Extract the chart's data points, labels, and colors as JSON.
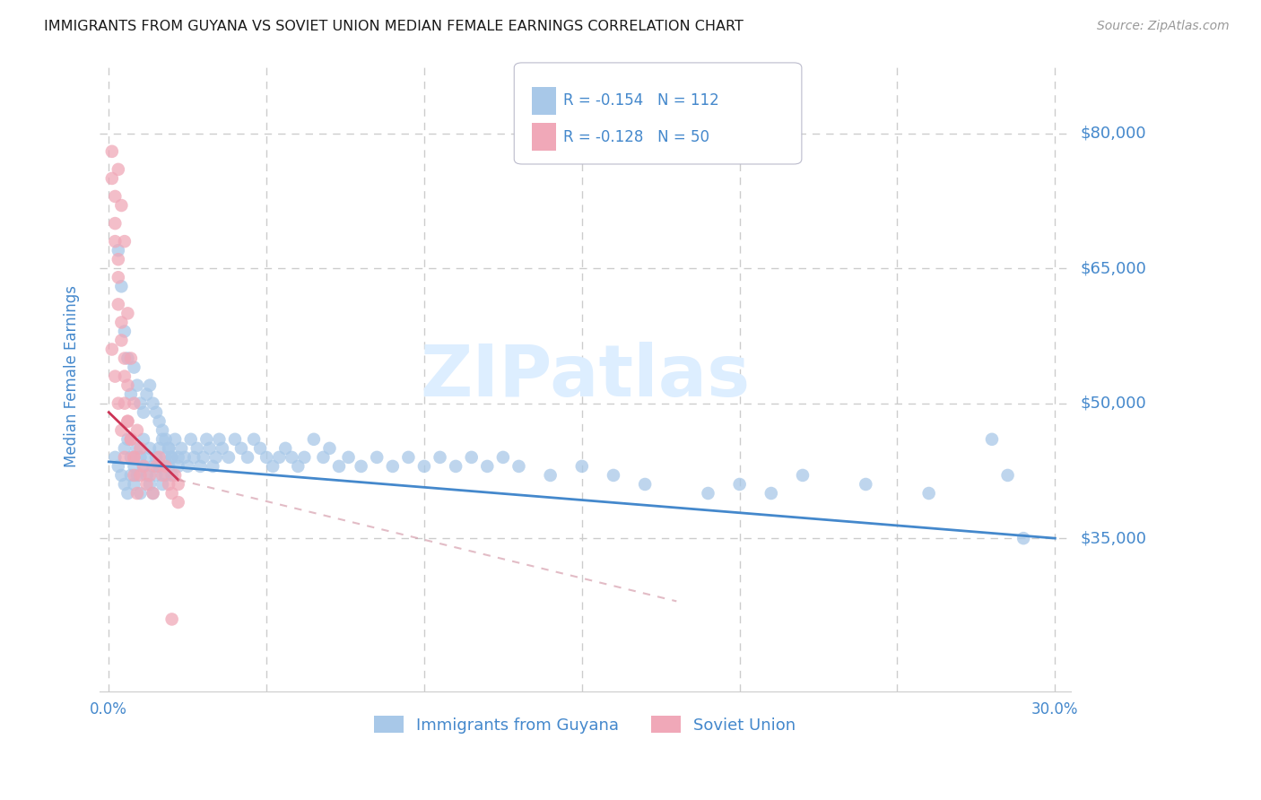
{
  "title": "IMMIGRANTS FROM GUYANA VS SOVIET UNION MEDIAN FEMALE EARNINGS CORRELATION CHART",
  "source": "Source: ZipAtlas.com",
  "ylabel": "Median Female Earnings",
  "watermark": "ZIPatlas",
  "legend_label1": "Immigrants from Guyana",
  "legend_label2": "Soviet Union",
  "R1": -0.154,
  "N1": 112,
  "R2": -0.128,
  "N2": 50,
  "xlim": [
    -0.003,
    0.305
  ],
  "ylim": [
    18000,
    88000
  ],
  "yticks": [
    35000,
    50000,
    65000,
    80000
  ],
  "ytick_labels": [
    "$35,000",
    "$50,000",
    "$65,000",
    "$80,000"
  ],
  "xticks": [
    0.0,
    0.05,
    0.1,
    0.15,
    0.2,
    0.25,
    0.3
  ],
  "xtick_labels": [
    "0.0%",
    "",
    "",
    "",
    "",
    "",
    "30.0%"
  ],
  "color_guyana": "#a8c8e8",
  "color_soviet": "#f0a8b8",
  "color_line_guyana": "#4488cc",
  "color_line_soviet": "#cc3355",
  "color_line_soviet_dash": "#d090a0",
  "title_color": "#222222",
  "axis_label_color": "#4488cc",
  "tick_color": "#4488cc",
  "grid_color": "#cccccc",
  "trend_guyana_x0": 0.0,
  "trend_guyana_y0": 43500,
  "trend_guyana_x1": 0.3,
  "trend_guyana_y1": 35000,
  "trend_soviet_solid_x0": 0.0,
  "trend_soviet_solid_y0": 49000,
  "trend_soviet_solid_x1": 0.022,
  "trend_soviet_solid_y1": 41500,
  "trend_soviet_dash_x0": 0.022,
  "trend_soviet_dash_y0": 41500,
  "trend_soviet_dash_x1": 0.18,
  "trend_soviet_dash_y1": 28000,
  "guyana_x": [
    0.002,
    0.003,
    0.004,
    0.005,
    0.005,
    0.006,
    0.006,
    0.007,
    0.007,
    0.008,
    0.008,
    0.009,
    0.009,
    0.01,
    0.01,
    0.011,
    0.011,
    0.012,
    0.012,
    0.013,
    0.013,
    0.014,
    0.014,
    0.015,
    0.015,
    0.016,
    0.016,
    0.017,
    0.017,
    0.018,
    0.018,
    0.019,
    0.019,
    0.02,
    0.02,
    0.021,
    0.022,
    0.022,
    0.023,
    0.024,
    0.025,
    0.026,
    0.027,
    0.028,
    0.029,
    0.03,
    0.031,
    0.032,
    0.033,
    0.034,
    0.035,
    0.036,
    0.038,
    0.04,
    0.042,
    0.044,
    0.046,
    0.048,
    0.05,
    0.052,
    0.054,
    0.056,
    0.058,
    0.06,
    0.062,
    0.065,
    0.068,
    0.07,
    0.073,
    0.076,
    0.08,
    0.085,
    0.09,
    0.095,
    0.1,
    0.105,
    0.11,
    0.115,
    0.12,
    0.125,
    0.13,
    0.14,
    0.15,
    0.16,
    0.17,
    0.19,
    0.2,
    0.21,
    0.22,
    0.24,
    0.26,
    0.28,
    0.285,
    0.29,
    0.003,
    0.004,
    0.005,
    0.006,
    0.007,
    0.008,
    0.009,
    0.01,
    0.011,
    0.012,
    0.013,
    0.014,
    0.015,
    0.016,
    0.017,
    0.018,
    0.019,
    0.02
  ],
  "guyana_y": [
    44000,
    43000,
    42000,
    41000,
    45000,
    40000,
    46000,
    42000,
    44000,
    43000,
    41000,
    45000,
    42000,
    44000,
    40000,
    43000,
    46000,
    42000,
    44000,
    41000,
    45000,
    43000,
    40000,
    44000,
    42000,
    45000,
    43000,
    41000,
    46000,
    44000,
    42000,
    45000,
    43000,
    44000,
    42000,
    46000,
    44000,
    43000,
    45000,
    44000,
    43000,
    46000,
    44000,
    45000,
    43000,
    44000,
    46000,
    45000,
    43000,
    44000,
    46000,
    45000,
    44000,
    46000,
    45000,
    44000,
    46000,
    45000,
    44000,
    43000,
    44000,
    45000,
    44000,
    43000,
    44000,
    46000,
    44000,
    45000,
    43000,
    44000,
    43000,
    44000,
    43000,
    44000,
    43000,
    44000,
    43000,
    44000,
    43000,
    44000,
    43000,
    42000,
    43000,
    42000,
    41000,
    40000,
    41000,
    40000,
    42000,
    41000,
    40000,
    46000,
    42000,
    35000,
    67000,
    63000,
    58000,
    55000,
    51000,
    54000,
    52000,
    50000,
    49000,
    51000,
    52000,
    50000,
    49000,
    48000,
    47000,
    46000,
    45000,
    44000
  ],
  "soviet_x": [
    0.001,
    0.001,
    0.002,
    0.002,
    0.002,
    0.003,
    0.003,
    0.003,
    0.003,
    0.004,
    0.004,
    0.004,
    0.005,
    0.005,
    0.005,
    0.005,
    0.006,
    0.006,
    0.006,
    0.007,
    0.007,
    0.008,
    0.008,
    0.008,
    0.009,
    0.009,
    0.01,
    0.01,
    0.011,
    0.012,
    0.013,
    0.014,
    0.015,
    0.016,
    0.017,
    0.018,
    0.019,
    0.02,
    0.021,
    0.022,
    0.022,
    0.001,
    0.002,
    0.003,
    0.004,
    0.005,
    0.006,
    0.007,
    0.008,
    0.02
  ],
  "soviet_y": [
    78000,
    75000,
    73000,
    70000,
    68000,
    66000,
    64000,
    61000,
    76000,
    59000,
    57000,
    72000,
    55000,
    53000,
    68000,
    50000,
    48000,
    52000,
    60000,
    46000,
    55000,
    44000,
    50000,
    42000,
    47000,
    40000,
    45000,
    42000,
    43000,
    41000,
    42000,
    40000,
    43000,
    44000,
    42000,
    43000,
    41000,
    40000,
    42000,
    41000,
    39000,
    56000,
    53000,
    50000,
    47000,
    44000,
    48000,
    46000,
    44000,
    26000
  ]
}
